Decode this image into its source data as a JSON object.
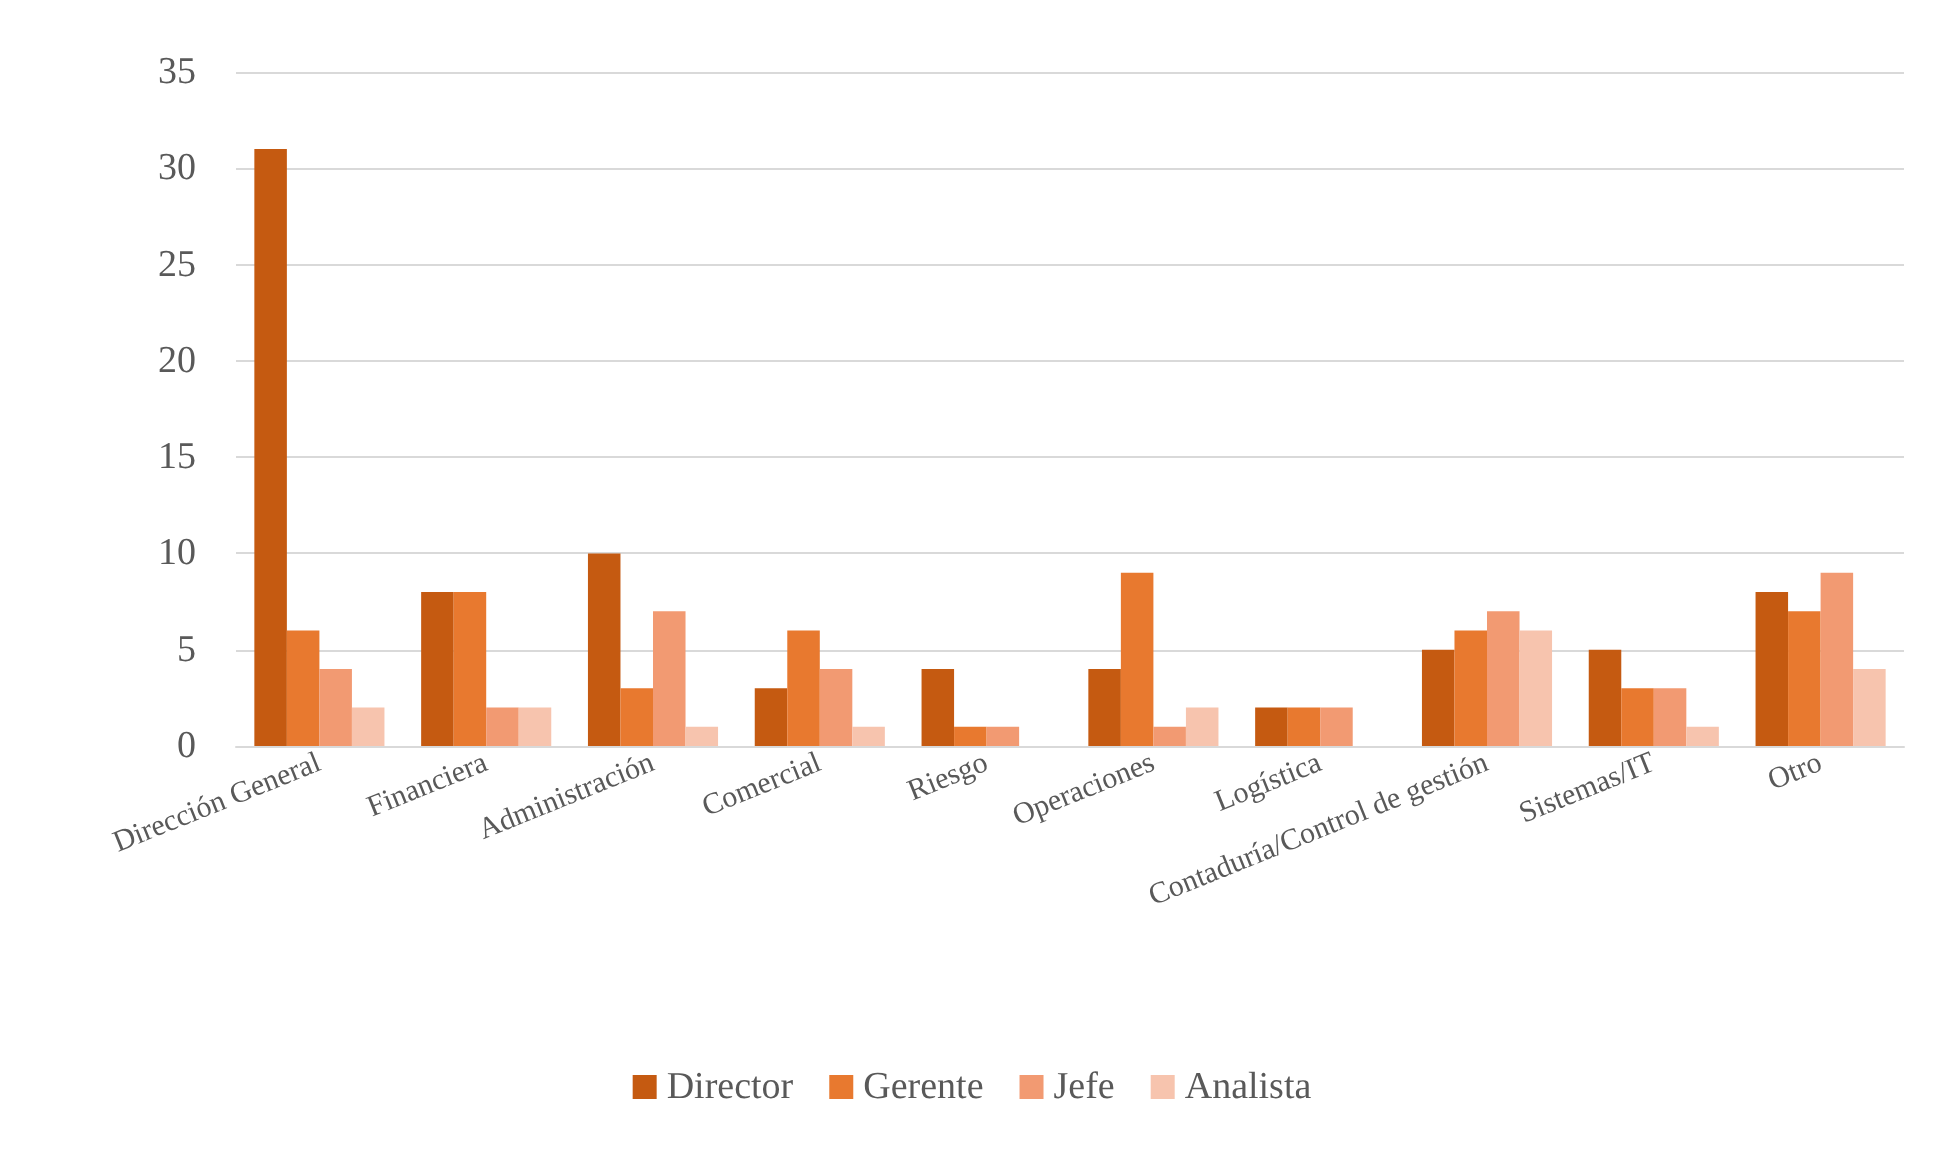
{
  "chart_data": {
    "type": "bar",
    "categories": [
      "Dirección General",
      "Financiera",
      "Administración",
      "Comercial",
      "Riesgo",
      "Operaciones",
      "Logística",
      "Contaduría/Control de gestión",
      "Sistemas/IT",
      "Otro"
    ],
    "series": [
      {
        "name": "Director",
        "color": "#c55a11",
        "values": [
          31,
          8,
          10,
          3,
          4,
          4,
          2,
          5,
          5,
          8
        ]
      },
      {
        "name": "Gerente",
        "color": "#e8792f",
        "values": [
          6,
          8,
          3,
          6,
          1,
          9,
          2,
          6,
          3,
          7
        ]
      },
      {
        "name": "Jefe",
        "color": "#f29a72",
        "values": [
          4,
          2,
          7,
          4,
          1,
          1,
          2,
          7,
          3,
          9
        ]
      },
      {
        "name": "Analista",
        "color": "#f7c4ae",
        "values": [
          2,
          2,
          1,
          1,
          0,
          2,
          0,
          6,
          1,
          4
        ]
      }
    ],
    "ylim": [
      0,
      35
    ],
    "yticks": [
      0,
      5,
      10,
      15,
      20,
      25,
      30,
      35
    ],
    "grid": "y",
    "legend": "bottom"
  }
}
